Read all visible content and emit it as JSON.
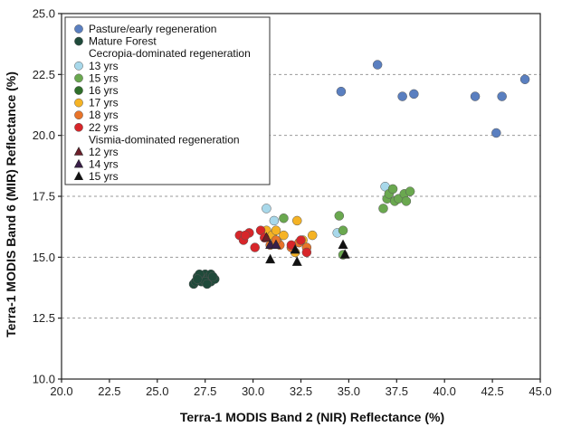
{
  "chart_data": {
    "type": "scatter",
    "xlabel": "Terra-1 MODIS Band 2 (NIR) Reflectance (%)",
    "ylabel": "Terra-1 MODIS Band 6 (MIR) Reflectance (%)",
    "xlim": [
      20.0,
      45.0
    ],
    "ylim": [
      10.0,
      25.0
    ],
    "x_ticks": [
      "20.0",
      "22.5",
      "25.0",
      "27.5",
      "30.0",
      "32.5",
      "35.0",
      "37.5",
      "40.0",
      "42.5",
      "45.0"
    ],
    "y_ticks": [
      "10.0",
      "12.5",
      "15.0",
      "17.5",
      "20.0",
      "22.5",
      "25.0"
    ],
    "grid": "horizontal dashed",
    "legend_position": "top-left",
    "legend_headings": {
      "cecropia": "Cecropia-dominated regeneration",
      "vismia": "Vismia-dominated regeneration"
    },
    "series": [
      {
        "name": "Pasture/early regeneration",
        "marker": "circle",
        "color": "#5a7fc0",
        "x": [
          34.6,
          36.5,
          37.8,
          38.4,
          41.6,
          43.0,
          42.7,
          44.2
        ],
        "y": [
          21.8,
          22.9,
          21.6,
          21.7,
          21.6,
          21.6,
          20.1,
          22.3
        ]
      },
      {
        "name": "Mature Forest",
        "marker": "circle",
        "color": "#1f4a3a",
        "x": [
          26.9,
          27.0,
          27.1,
          27.2,
          27.3,
          27.4,
          27.5,
          27.6,
          27.7,
          27.8,
          27.9,
          28.0,
          27.2,
          27.5,
          27.8,
          27.1,
          27.6,
          27.9
        ],
        "y": [
          13.9,
          14.0,
          14.2,
          14.1,
          14.0,
          14.2,
          14.3,
          14.1,
          14.2,
          14.0,
          14.2,
          14.1,
          14.3,
          14.0,
          14.3,
          14.1,
          13.9,
          14.2
        ]
      },
      {
        "name": "13 yrs",
        "marker": "circle",
        "color": "#a8d8ea",
        "x": [
          30.7,
          31.1,
          34.4,
          36.9
        ],
        "y": [
          17.0,
          16.5,
          16.0,
          17.9
        ]
      },
      {
        "name": "15 yrs",
        "marker": "circle",
        "color": "#6aa84f",
        "x": [
          31.6,
          34.5,
          34.7,
          34.7,
          36.8,
          37.0,
          37.1,
          37.3,
          37.4,
          37.6,
          37.9,
          38.0,
          38.2
        ],
        "y": [
          16.6,
          16.7,
          16.1,
          15.1,
          17.0,
          17.4,
          17.6,
          17.8,
          17.3,
          17.4,
          17.6,
          17.3,
          17.7
        ]
      },
      {
        "name": "16 yrs",
        "marker": "circle",
        "color": "#2f6e2a",
        "x": [],
        "y": []
      },
      {
        "name": "17 yrs",
        "marker": "circle",
        "color": "#f5b324",
        "x": [
          30.7,
          31.0,
          31.3,
          31.6,
          32.3,
          32.6,
          33.1,
          31.2,
          32.2
        ],
        "y": [
          16.1,
          15.9,
          15.6,
          15.9,
          16.5,
          15.7,
          15.9,
          16.1,
          15.2
        ]
      },
      {
        "name": "18 yrs",
        "marker": "circle",
        "color": "#e8742a",
        "x": [
          30.9,
          31.4,
          32.0,
          32.4,
          32.8,
          31.2
        ],
        "y": [
          15.5,
          15.5,
          15.4,
          15.6,
          15.4,
          15.7
        ]
      },
      {
        "name": "22 yrs",
        "marker": "circle",
        "color": "#d7262a",
        "x": [
          29.3,
          29.5,
          29.8,
          30.1,
          30.4,
          29.6,
          30.6,
          32.0,
          32.5,
          32.8
        ],
        "y": [
          15.9,
          15.7,
          16.0,
          15.4,
          16.1,
          15.9,
          15.8,
          15.5,
          15.7,
          15.2
        ]
      },
      {
        "name": "12 yrs",
        "marker": "triangle",
        "color": "#6e1f2a",
        "x": [
          30.7
        ],
        "y": [
          15.8
        ]
      },
      {
        "name": "14 yrs",
        "marker": "triangle",
        "color": "#3a1f4a",
        "x": [
          30.9,
          31.2
        ],
        "y": [
          15.5,
          15.5
        ]
      },
      {
        "name": "15 yrs",
        "marker": "triangle",
        "color": "#111111",
        "x": [
          30.9,
          32.2,
          32.3,
          34.7,
          34.8
        ],
        "y": [
          14.9,
          15.3,
          14.8,
          15.5,
          15.1
        ]
      }
    ]
  }
}
